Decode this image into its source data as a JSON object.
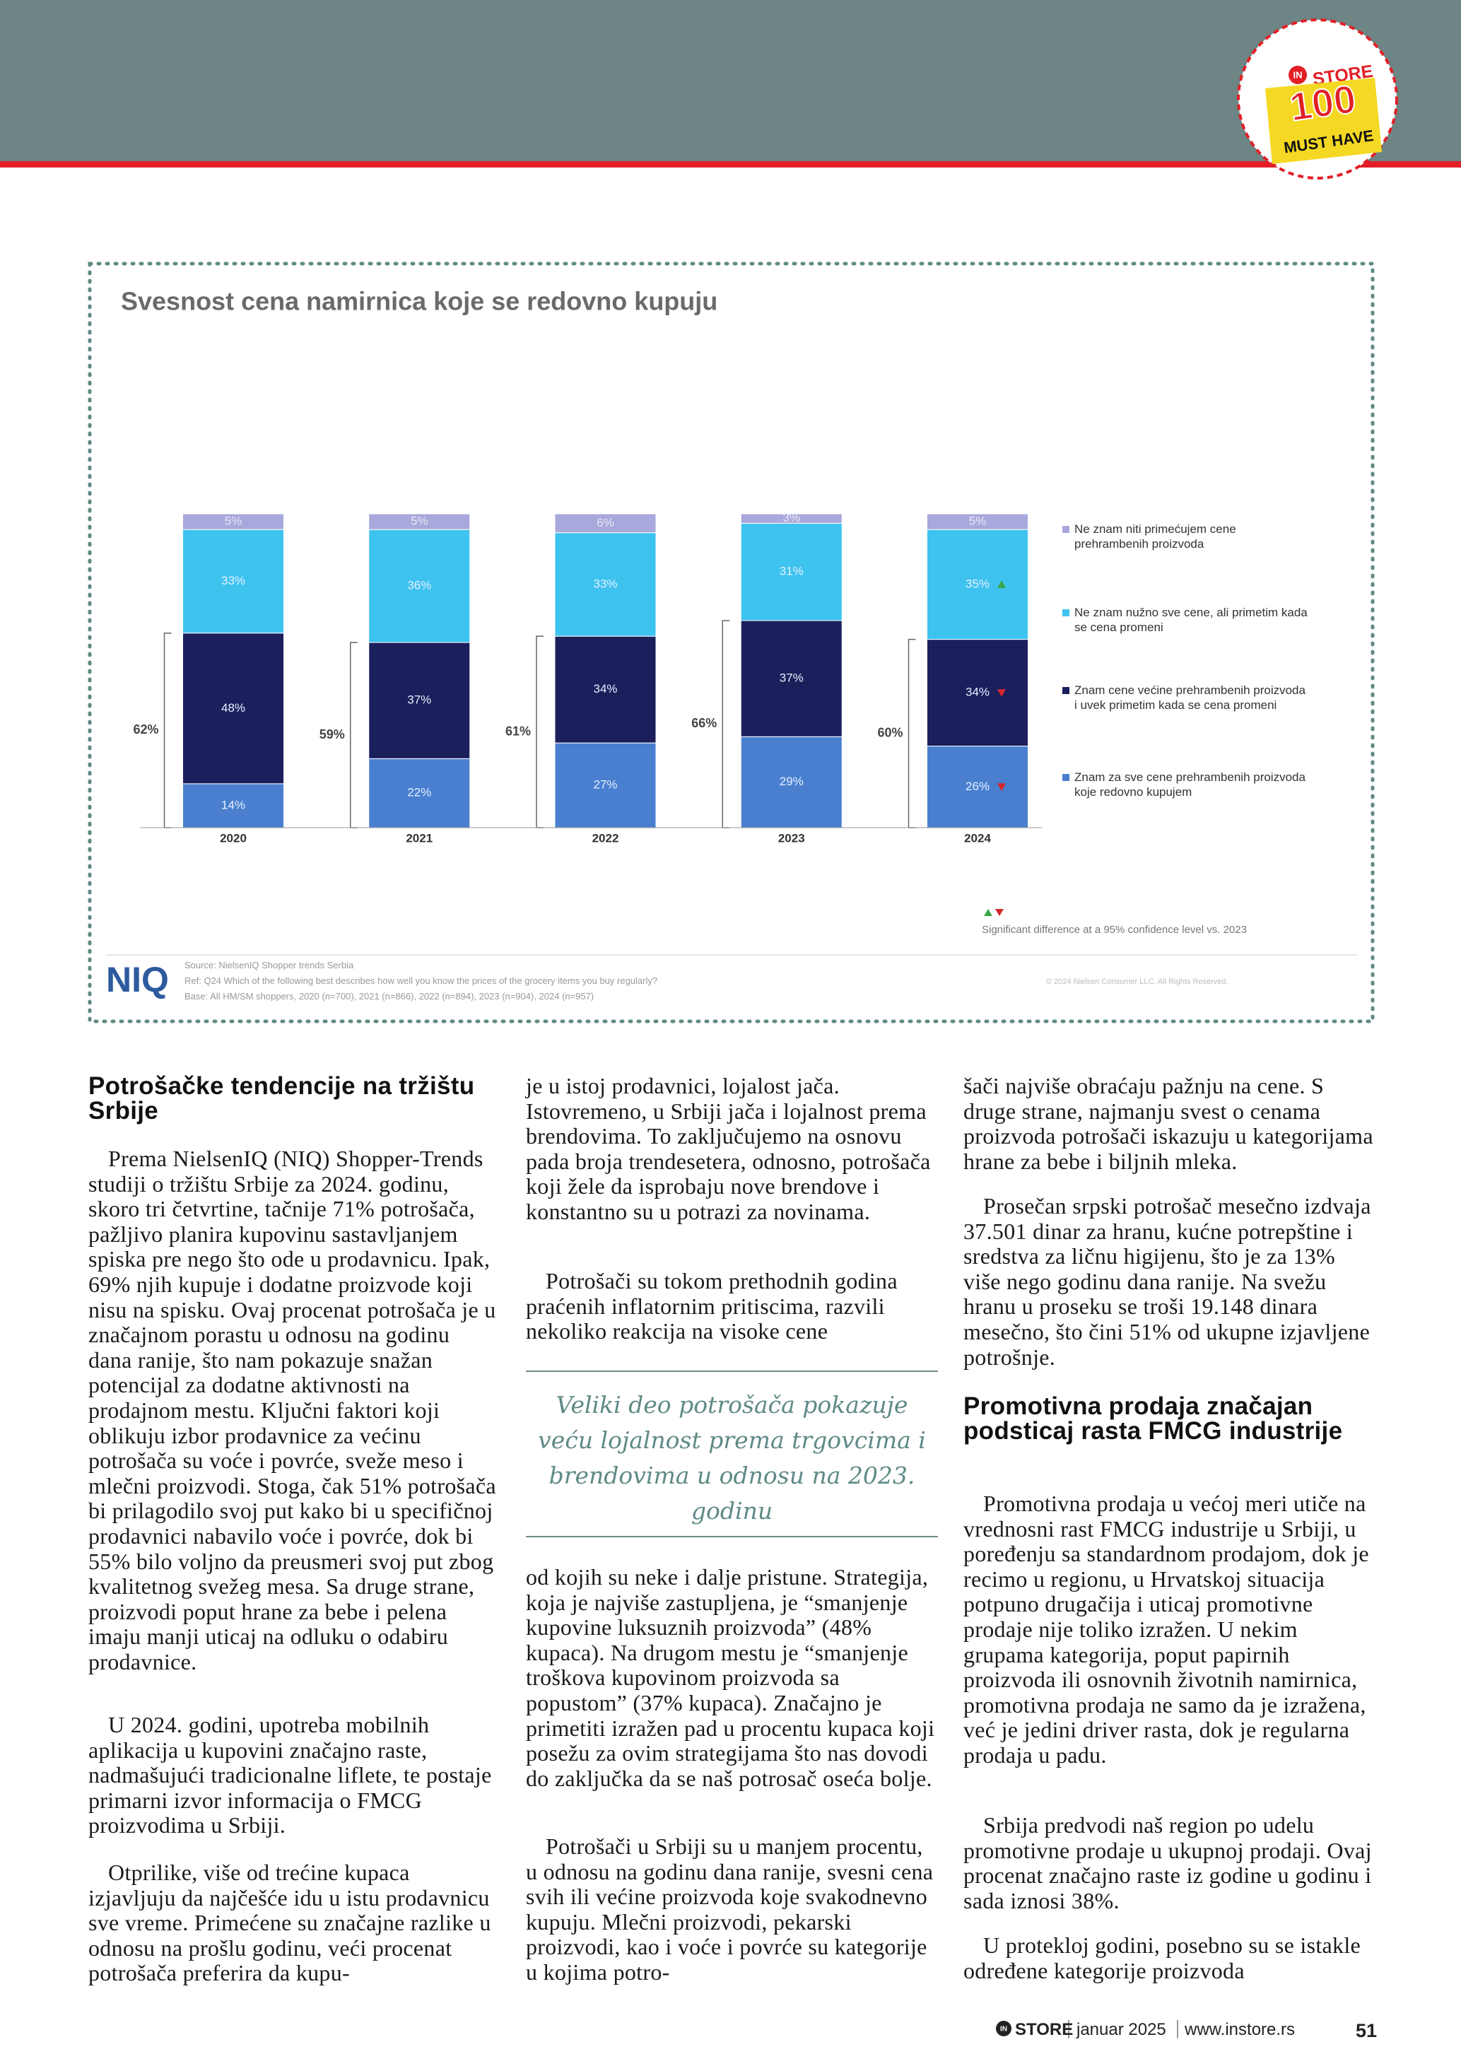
{
  "header": {
    "badge": {
      "logo": "IN",
      "brand": "STORE",
      "number": "100",
      "tagline": "MUST HAVE"
    }
  },
  "chart_data": {
    "type": "stacked_bar",
    "title": "Svesnost cena namirnica koje se redovno kupuju",
    "categories": [
      "2020",
      "2021",
      "2022",
      "2023",
      "2024"
    ],
    "ylim": [
      0,
      100
    ],
    "legend": "right",
    "series": [
      {
        "name": "Znam za sve cene prehrambenih proizvoda koje redovno kupujem",
        "color": "#4a7fd0",
        "values": [
          14,
          22,
          27,
          29,
          26
        ],
        "value_labels": [
          "14%",
          "22%",
          "27%",
          "29%",
          "26%"
        ]
      },
      {
        "name": "Znam cene većine prehrambenih proizvoda i uvek primetim kada se cena promeni",
        "color": "#1b1f5c",
        "values": [
          48,
          37,
          34,
          37,
          34
        ],
        "value_labels": [
          "48%",
          "37%",
          "34%",
          "37%",
          "34%"
        ]
      },
      {
        "name": "Ne znam nužno sve cene, ali primetim kada se cena promeni",
        "color": "#3ec3ef",
        "values": [
          33,
          36,
          33,
          31,
          35
        ],
        "value_labels": [
          "33%",
          "36%",
          "33%",
          "31%",
          "35%"
        ]
      },
      {
        "name": "Ne znam niti primećujem cene prehrambenih proizvoda",
        "color": "#a8a8dc",
        "values": [
          5,
          5,
          6,
          3,
          5
        ],
        "value_labels": [
          "5%",
          "5%",
          "6%",
          "3%",
          "5%"
        ]
      }
    ],
    "bracket_values": [
      62,
      59,
      61,
      66,
      60
    ],
    "bracket_labels": [
      "62%",
      "59%",
      "61%",
      "66%",
      "60%"
    ],
    "footnote": "Significant difference at a 95% confidence level vs. 2023",
    "logo": "NIQ",
    "source": [
      "Source: NielsenIQ Shopper trends Serbia",
      "Ref: Q24 Which of the following best describes how well you know the prices of the grocery items you buy regularly?",
      "Base: All HM/SM shoppers, 2020 (n=700), 2021 (n=866), 2022 (n=894), 2023 (n=904), 2024 (n=957)"
    ],
    "copyright": "© 2024 Nielsen Consumer LLC. All Rights Reserved."
  },
  "article": {
    "sections": [
      {
        "heading": "Potrošačke tendencije na tržištu Srbije",
        "paragraphs": [
          "Prema NielsenIQ (NIQ) Shopper-Trends studiji o tržištu Srbije za 2024. godinu, skoro tri četvrtine, tačnije 71% potrošača, pažljivo planira kupovinu sastavljanjem spiska pre nego što ode u prodavnicu. Ipak, 69% njih kupuje i dodatne proizvode koji nisu na spisku. Ovaj procenat potrošača je u značajnom porastu u odnosu na godinu dana ranije, što nam pokazuje snažan potencijal za dodatne aktivnosti na prodajnom mestu. Ključni faktori koji oblikuju izbor prodavnice za većinu potrošača su voće i povrće, sveže meso i mlečni proizvodi. Stoga, čak 51% potrošača bi prilagodilo svoj put kako bi u specifičnoj prodavnici nabavilo voće i povrće, dok bi 55% bilo voljno da preusmeri svoj put zbog kvalitetnog svežeg mesa. Sa druge strane, proizvodi poput hrane za bebe i pelena imaju manji uticaj na odluku o odabiru prodavnice.",
          "U 2024. godini, upotreba mobilnih aplikacija u kupovini značajno raste, nadmašujući tradicionalne liflete, te postaje primarni izvor informacija o FMCG proizvodima u Srbiji.",
          "Otprilike, više od trećine kupaca izjavljuju da najčešće idu u istu prodavnicu sve vreme. Primećene su značajne razlike u odnosu na prošlu godinu, veći procenat potrošača preferira da kupu-",
          "je u istoj prodavnici, lojalost jača. Istovremeno, u Srbiji jača i lojalnost prema brendovima. To zaključujemo na osnovu pada broja trendesetera, odnosno, potrošača koji žele da isprobaju nove brendove i konstantno su u potrazi za novinama.",
          "Potrošači su tokom prethodnih godina praćenih inflatornim pritiscima, razvili nekoliko reakcija na visoke cene",
          "od kojih su neke i dalje pristune. Strategija, koja je najviše zastupljena, je “smanjenje kupovine luksuznih proizvoda” (48% kupaca). Na drugom mestu je “smanjenje troškova kupovinom proizvoda sa popustom” (37% kupaca). Značajno je primetiti izražen pad u procentu kupaca koji posežu za ovim strategijama što nas dovodi do zaključka da se naš potrosač oseća bolje.",
          "Potrošači u Srbiji su u manjem procentu, u odnosu na godinu dana ranije, svesni cena svih ili većine proizvoda koje svakodnevno kupuju. Mlečni proizvodi, pekarski proizvodi, kao i voće i povrće su kategorije u kojima potro-",
          "šači najviše obraćaju pažnju na cene. S druge strane, najmanju svest o cenama proizvoda potrošači iskazuju u kategorijama hrane za bebe i biljnih mleka.",
          "Prosečan srpski potrošač mesečno izdvaja 37.501 dinar za hranu, kućne potrepštine i sredstva za ličnu higijenu, što je za 13% više nego godinu dana ranije. Na svežu hranu u proseku se troši 19.148 dinara mesečno, što čini 51% od ukupne izjavljene potrošnje."
        ]
      },
      {
        "heading": "Promotivna prodaja značajan podsticaj rasta FMCG industrije",
        "paragraphs": [
          "Promotivna prodaja u većoj meri utiče na vrednosni rast FMCG industrije u Srbiji, u poređenju sa standardnom prodajom, dok je recimo u regionu, u Hrvatskoj situacija potpuno drugačija i uticaj promotivne prodaje nije toliko izražen. U nekim grupama kategorija, poput papirnih proizvoda ili osnovnih životnih namirnica, promotivna prodaja ne samo da je izražena, već je jedini driver rasta, dok je regularna prodaja u padu.",
          "Srbija predvodi naš region po udelu promotivne prodaje u ukupnoj prodaji. Ovaj procenat značajno raste iz godine u godinu i sada iznosi 38%.",
          "U proteklоj godini, posebno su se istakle određene kategorije proizvoda"
        ]
      }
    ],
    "pull_quote": "Veliki deo potrošača pokazuje veću lojalnost prema trgovcima i brendovima u odnosu na 2023. godinu"
  },
  "footer": {
    "logo": "IN",
    "brand": "STORE",
    "issue": "januar 2025",
    "url": "www.instore.rs",
    "page": "51"
  }
}
